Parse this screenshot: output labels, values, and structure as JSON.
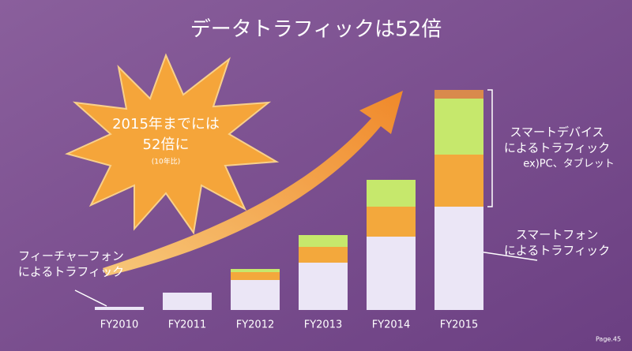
{
  "chart_data": {
    "type": "stacked-bar",
    "title": "データトラフィックは52倍",
    "categories": [
      "FY2010",
      "FY2011",
      "FY2012",
      "FY2013",
      "FY2014",
      "FY2015"
    ],
    "series": [
      {
        "color": "#ebe6f6",
        "values": [
          4,
          22,
          38,
          60,
          93,
          131
        ]
      },
      {
        "color": "#f3a83c",
        "values": [
          null,
          null,
          10,
          20,
          38,
          66
        ]
      },
      {
        "color": "#c6e86c",
        "values": [
          null,
          null,
          4,
          15,
          34,
          71
        ]
      },
      {
        "color": "#d98a4c",
        "values": [
          null,
          null,
          null,
          null,
          null,
          11
        ]
      }
    ],
    "burst": [
      "2015年までには",
      "52倍に",
      "(10年比)"
    ],
    "annotations": {
      "feature_phone": [
        "フィーチャーフォン",
        "によるトラフィック"
      ],
      "smartphone": [
        "スマートフォン",
        "によるトラフィック"
      ],
      "smart_device": [
        "スマートデバイス",
        "によるトラフィック",
        "ex)PC、タブレット"
      ]
    },
    "page": "Page.45"
  }
}
